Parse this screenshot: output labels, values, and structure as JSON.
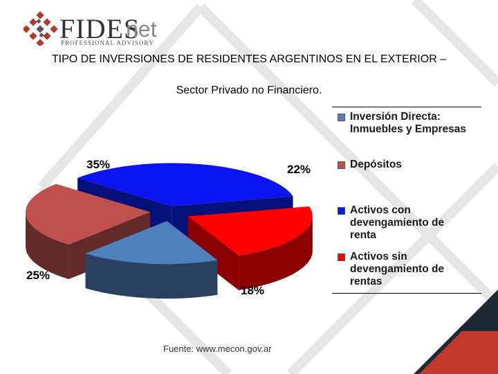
{
  "logo": {
    "brand": "FIDES",
    "suffix": "net",
    "tagline": "PROFESSIONAL ADVISORY"
  },
  "title_line1": "TIPO DE INVERSIONES DE RESIDENTES ARGENTINOS EN EL EXTERIOR –",
  "title_line2": "Sector Privado no Financiero.",
  "source": "Fuente: www.mecon.gov.ar",
  "colors": {
    "accent_red": "#c0392b",
    "accent_dark": "#1c2833",
    "background_lines": "#e6e6e6"
  },
  "chart_data": {
    "type": "pie",
    "style": "3d-exploded",
    "legend_position": "right",
    "series": [
      {
        "name": "Inversión Directa: Inmuebles y Empresas",
        "value": 18,
        "label": "18%",
        "color": "#4f81bd",
        "side_color": "#2a4060"
      },
      {
        "name": "Depósitos",
        "value": 25,
        "label": "25%",
        "color": "#c0504d",
        "side_color": "#622a2a"
      },
      {
        "name": "Activos con devengamiento de renta",
        "value": 35,
        "label": "35%",
        "color": "#0a14f0",
        "side_color": "#05107a"
      },
      {
        "name": "Activos sin devengamiento de rentas",
        "value": 22,
        "label": "22%",
        "color": "#ff0000",
        "side_color": "#8a0000"
      }
    ]
  }
}
